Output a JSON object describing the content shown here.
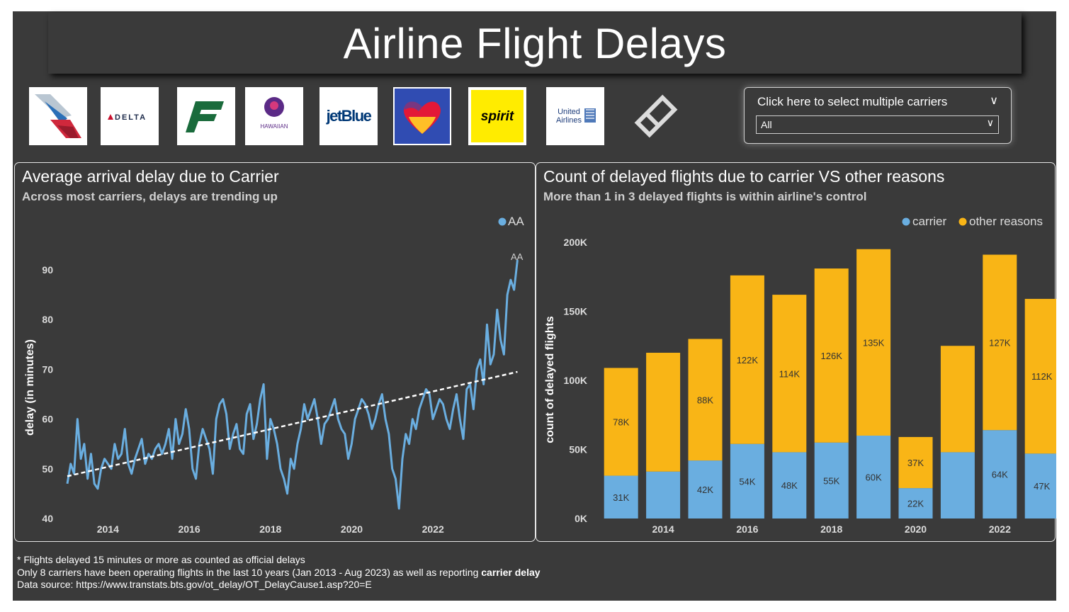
{
  "title": "Airline Flight Delays",
  "logos": [
    {
      "name": "american-airlines-logo-icon"
    },
    {
      "name": "delta-logo-icon",
      "text": "DELTA"
    },
    {
      "name": "frontier-logo-icon"
    },
    {
      "name": "hawaiian-logo-icon",
      "text": "HAWAIIAN"
    },
    {
      "name": "jetblue-logo-icon",
      "text": "jetBlue"
    },
    {
      "name": "southwest-logo-icon"
    },
    {
      "name": "spirit-logo-icon",
      "text": "spirit"
    },
    {
      "name": "united-logo-icon",
      "text1": "United",
      "text2": "Airlines"
    },
    {
      "name": "eraser-icon"
    }
  ],
  "slicer": {
    "title": "Click here to select multiple carriers",
    "selected": "All"
  },
  "colors": {
    "background": "#3a3a3a",
    "carrier": "#6aaee0",
    "other": "#f9b516",
    "line": "#6aaee0",
    "trend": "#ffffff"
  },
  "chart_data": [
    {
      "type": "line",
      "title": "Average arrival delay due to Carrier",
      "subtitle": "Across most carriers, delays are trending up",
      "xlabel": "",
      "ylabel": "delay (in minutes)",
      "ylim": [
        40,
        93
      ],
      "xlim": [
        2013.0,
        2023.67
      ],
      "x_ticks": [
        2014,
        2016,
        2018,
        2020,
        2022
      ],
      "y_ticks": [
        40,
        50,
        60,
        70,
        80,
        90
      ],
      "legend": "AA",
      "series_end_label": "AA",
      "series": [
        {
          "name": "AA",
          "start": 2013.0,
          "step": 0.0833,
          "values": [
            47,
            51,
            49,
            60,
            52,
            55,
            48,
            53,
            47,
            46,
            50,
            52,
            51,
            50,
            55,
            52,
            53,
            58,
            51,
            49,
            52,
            54,
            56,
            51,
            53,
            52,
            54,
            55,
            53,
            55,
            58,
            52,
            60,
            55,
            57,
            62,
            58,
            50,
            48,
            55,
            58,
            56,
            54,
            49,
            60,
            63,
            64,
            61,
            54,
            57,
            59,
            54,
            53,
            61,
            63,
            56,
            59,
            64,
            67,
            52,
            60,
            58,
            55,
            50,
            48,
            45,
            52,
            50,
            55,
            58,
            63,
            60,
            62,
            64,
            60,
            55,
            59,
            60,
            62,
            64,
            60,
            58,
            57,
            52,
            55,
            60,
            62,
            64,
            63,
            61,
            58,
            60,
            63,
            65,
            60,
            57,
            50,
            48,
            42,
            52,
            57,
            55,
            60,
            58,
            62,
            64,
            66,
            65,
            60,
            62,
            64,
            63,
            60,
            58,
            62,
            65,
            60,
            56,
            66,
            67,
            62,
            70,
            72,
            67,
            79,
            71,
            73,
            82,
            76,
            73,
            85,
            88,
            86,
            92
          ]
        },
        {
          "name": "trend",
          "start": 2013.0,
          "step": 0.5,
          "values": [
            48.5,
            69.5
          ],
          "dashed": true
        }
      ]
    },
    {
      "type": "bar",
      "stacked": true,
      "title": "Count of delayed flights due to carrier VS other reasons",
      "subtitle": "More than 1 in 3 delayed flights is within airline's control",
      "xlabel": "",
      "ylabel": "count of delayed flights",
      "ylim": [
        0,
        200000
      ],
      "y_ticks": [
        0,
        50000,
        100000,
        150000,
        200000
      ],
      "y_tick_labels": [
        "0K",
        "50K",
        "100K",
        "150K",
        "200K"
      ],
      "categories": [
        2013,
        2014,
        2015,
        2016,
        2017,
        2018,
        2019,
        2020,
        2021,
        2022,
        2023
      ],
      "x_tick_labels": [
        "",
        "2014",
        "",
        "2016",
        "",
        "2018",
        "",
        "2020",
        "",
        "2022",
        ""
      ],
      "legend": [
        "carrier",
        "other reasons"
      ],
      "series": [
        {
          "name": "carrier",
          "values": [
            31000,
            34000,
            42000,
            54000,
            48000,
            55000,
            60000,
            22000,
            48000,
            64000,
            47000
          ],
          "labels": [
            "31K",
            "",
            "42K",
            "54K",
            "48K",
            "55K",
            "60K",
            "22K",
            "",
            "64K",
            "47K"
          ]
        },
        {
          "name": "other reasons",
          "values": [
            78000,
            86000,
            88000,
            122000,
            114000,
            126000,
            135000,
            37000,
            77000,
            127000,
            112000
          ],
          "labels": [
            "78K",
            "",
            "88K",
            "122K",
            "114K",
            "126K",
            "135K",
            "37K",
            "",
            "127K",
            "112K"
          ]
        }
      ]
    }
  ],
  "footnotes": {
    "line1": "* Flights delayed 15 minutes or more as counted as official delays",
    "line2_prefix": "Only 8 carriers have been operating flights in the last 10 years (Jan 2013 - Aug 2023) as well as reporting ",
    "line2_bold": "carrier delay",
    "line3": "Data source: https://www.transtats.bts.gov/ot_delay/OT_DelayCause1.asp?20=E"
  }
}
